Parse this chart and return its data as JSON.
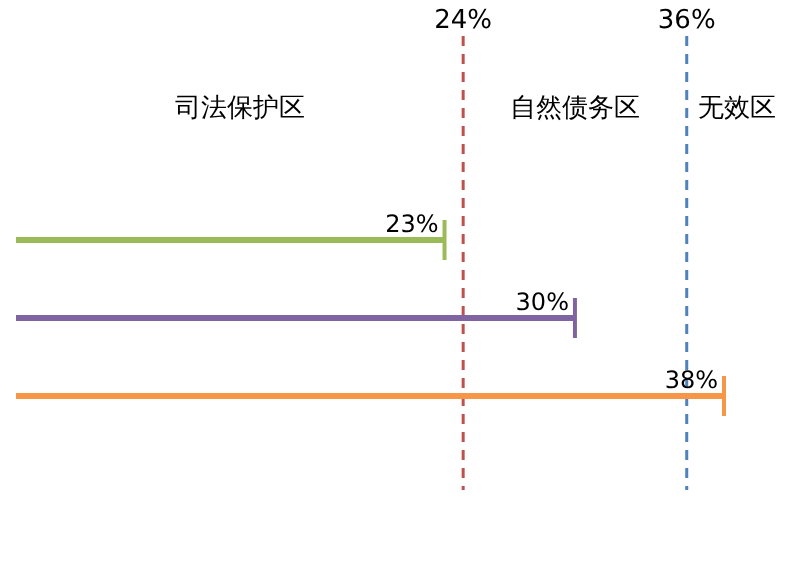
{
  "chart_data": {
    "type": "bar",
    "orientation": "horizontal",
    "categories": [
      null,
      null,
      null
    ],
    "values": [
      23,
      30,
      38
    ],
    "colors": [
      "#9bbb59",
      "#8064a2",
      "#f79646"
    ],
    "data_labels": true,
    "value_labels": [
      "23%",
      "30%",
      "38%"
    ],
    "xlim": [
      0,
      38
    ],
    "xticks": [
      {
        "value": 24,
        "label": "24%"
      },
      {
        "value": 36,
        "label": "36%"
      }
    ],
    "ref_lines": [
      {
        "axis": "x",
        "value": 24,
        "color": "#c0504d",
        "line_style": "dashed"
      },
      {
        "axis": "x",
        "value": 36,
        "color": "#4f81bd",
        "line_style": "dashed"
      }
    ],
    "annotations": [
      "司法保护区",
      "自然债务区",
      "无效区"
    ]
  }
}
